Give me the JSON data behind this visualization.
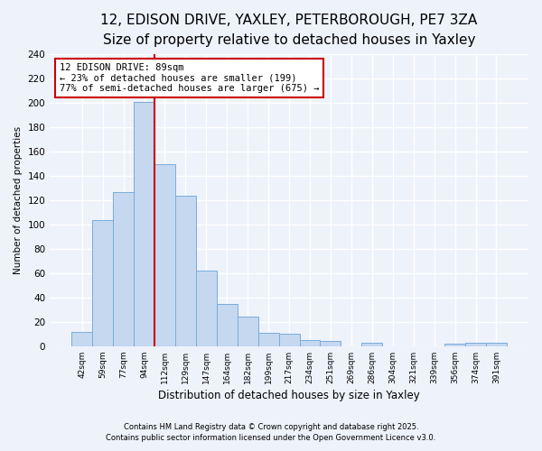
{
  "title": "12, EDISON DRIVE, YAXLEY, PETERBOROUGH, PE7 3ZA",
  "subtitle": "Size of property relative to detached houses in Yaxley",
  "xlabel": "Distribution of detached houses by size in Yaxley",
  "ylabel": "Number of detached properties",
  "bin_labels": [
    "42sqm",
    "59sqm",
    "77sqm",
    "94sqm",
    "112sqm",
    "129sqm",
    "147sqm",
    "164sqm",
    "182sqm",
    "199sqm",
    "217sqm",
    "234sqm",
    "251sqm",
    "269sqm",
    "286sqm",
    "304sqm",
    "321sqm",
    "339sqm",
    "356sqm",
    "374sqm",
    "391sqm"
  ],
  "bar_values": [
    12,
    104,
    127,
    201,
    150,
    124,
    62,
    35,
    24,
    11,
    10,
    5,
    4,
    0,
    3,
    0,
    0,
    0,
    2,
    3,
    3
  ],
  "bar_color": "#c5d8f0",
  "bar_edge_color": "#7aabda",
  "vline_x": 3.5,
  "vline_color": "#cc0000",
  "annotation_title": "12 EDISON DRIVE: 89sqm",
  "annotation_line2": "← 23% of detached houses are smaller (199)",
  "annotation_line3": "77% of semi-detached houses are larger (675) →",
  "annotation_box_color": "#ffffff",
  "annotation_box_edge": "#cc0000",
  "ylim": [
    0,
    240
  ],
  "yticks": [
    0,
    20,
    40,
    60,
    80,
    100,
    120,
    140,
    160,
    180,
    200,
    220,
    240
  ],
  "footnote1": "Contains HM Land Registry data © Crown copyright and database right 2025.",
  "footnote2": "Contains public sector information licensed under the Open Government Licence v3.0.",
  "bg_color": "#eef2fb",
  "title_fontsize": 11,
  "subtitle_fontsize": 9.5
}
